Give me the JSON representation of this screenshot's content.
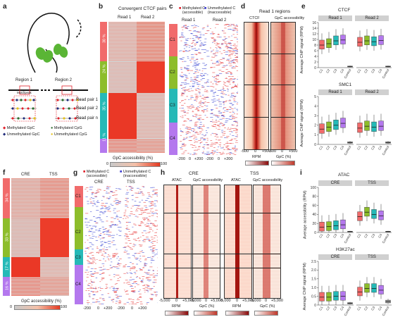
{
  "panels": [
    "a",
    "b",
    "c",
    "d",
    "e",
    "f",
    "g",
    "h",
    "i"
  ],
  "a": {
    "region1": "Region 1",
    "region2": "Region 2",
    "motif": "Motif/peak",
    "read_pairs": [
      "Read pair 1",
      "Read pair 2",
      "Read pair n"
    ],
    "legend": [
      "Methylated GpC",
      "Unmethylated GpC",
      "Methylated CpG",
      "Unmethylated CpG"
    ],
    "colors": {
      "meth_gpc": "#e0202a",
      "unmeth_gpc": "#1f2a7a",
      "meth_cpg": "#2b6b2b",
      "unmeth_cpg": "#e6c21a"
    }
  },
  "b": {
    "title": "Convergent CTCF pairs",
    "read1": "Read 1",
    "read2": "Read 2",
    "clusters": [
      "30 %",
      "24 %",
      "35 %",
      "11 %"
    ],
    "cbar_label": "GpC accessibility (%)",
    "cbar_min": "0",
    "cbar_max": "100"
  },
  "c": {
    "legend_meth": "Methylated C (accessible)",
    "legend_unmeth": "Unmethylated C (inaccessible)",
    "read1": "Read 1",
    "read2": "Read 2",
    "clusters": [
      "C1",
      "C2",
      "C3",
      "C4"
    ],
    "ticks": [
      "-200",
      "0",
      "+200",
      "-200",
      "0",
      "+200"
    ]
  },
  "d": {
    "title": "Read 1 regions",
    "col1": "CTCF",
    "col2": "GpC accessibility",
    "ticks": [
      "-500",
      "0",
      "+500",
      "-500",
      "0",
      "+500"
    ],
    "cbar1": "RPM",
    "cbar2": "GpC (%)"
  },
  "e": {
    "title1": "CTCF",
    "title2": "SMC1",
    "read1": "Read 1",
    "read2": "Read 2",
    "ylabel": "Average ChIP signal (RPM)",
    "yticks1": [
      "0",
      "2",
      "4",
      "6",
      "8",
      "10",
      "12",
      "14",
      "16"
    ],
    "yticks2": [
      "0",
      "1",
      "2",
      "3",
      "4",
      "5"
    ],
    "xcats": [
      "C1",
      "C2",
      "C3",
      "C4",
      "Control"
    ]
  },
  "f": {
    "col1": "CRE",
    "col2": "TSS",
    "clusters": [
      "34 %",
      "33 %",
      "17 %",
      "16 %"
    ],
    "cbar_label": "GpC accessibility (%)",
    "cbar_min": "0",
    "cbar_max": "100"
  },
  "g": {
    "legend_meth": "Methylated C (accessible)",
    "legend_unmeth": "Unmethylated C (inaccessible)",
    "col1": "CRE",
    "col2": "TSS",
    "clusters": [
      "C1",
      "C2",
      "C3",
      "C4"
    ],
    "ticks": [
      "-200",
      "0",
      "+200",
      "-200",
      "0",
      "+200"
    ]
  },
  "h": {
    "cre": "CRE",
    "tss": "TSS",
    "atac": "ATAC",
    "gpc": "GpC accessibility",
    "ticks": [
      "-5,000",
      "0",
      "+5,000"
    ],
    "cbar1": "RPM",
    "cbar2": "GpC (%)"
  },
  "i": {
    "title1": "ATAC",
    "title2": "H3K27ac",
    "cre": "CRE",
    "tss": "TSS",
    "ylabel1": "Average accessibility (RPM)",
    "ylabel2": "Average ChIP signal (RPM)",
    "yticks1": [
      "0",
      "20",
      "40",
      "60",
      "80",
      "100"
    ],
    "yticks2": [
      "0",
      "0.5",
      "1.0",
      "1.5",
      "2.0",
      "2.5"
    ],
    "xcats": [
      "C1",
      "C2",
      "C3",
      "C4",
      "Control"
    ]
  },
  "chart_data": [
    {
      "type": "box",
      "panel": "e",
      "title": "CTCF",
      "facets": [
        "Read 1",
        "Read 2"
      ],
      "ylabel": "Average ChIP signal (RPM)",
      "ylim": [
        0,
        16
      ],
      "categories": [
        "C1",
        "C2",
        "C3",
        "C4",
        "Control"
      ],
      "series": [
        {
          "name": "Read 1",
          "medians": [
            8,
            8.5,
            9.5,
            9.8,
            0.4
          ]
        },
        {
          "name": "Read 2",
          "medians": [
            9,
            9.5,
            9.2,
            9.6,
            0.4
          ]
        }
      ]
    },
    {
      "type": "box",
      "panel": "e",
      "title": "SMC1",
      "facets": [
        "Read 1",
        "Read 2"
      ],
      "ylabel": "Average ChIP signal (RPM)",
      "ylim": [
        0,
        5
      ],
      "categories": [
        "C1",
        "C2",
        "C3",
        "C4",
        "Control"
      ],
      "series": [
        {
          "name": "Read 1",
          "medians": [
            1.6,
            1.8,
            2.0,
            2.2,
            0.2
          ]
        },
        {
          "name": "Read 2",
          "medians": [
            1.7,
            1.9,
            1.8,
            1.9,
            0.2
          ]
        }
      ]
    },
    {
      "type": "box",
      "panel": "i",
      "title": "ATAC",
      "facets": [
        "CRE",
        "TSS"
      ],
      "ylabel": "Average accessibility (RPM)",
      "ylim": [
        0,
        100
      ],
      "categories": [
        "C1",
        "C2",
        "C3",
        "C4",
        "Control"
      ],
      "series": [
        {
          "name": "CRE",
          "medians": [
            12,
            13,
            15,
            17,
            2
          ]
        },
        {
          "name": "TSS",
          "medians": [
            35,
            45,
            40,
            37,
            2
          ]
        }
      ]
    },
    {
      "type": "box",
      "panel": "i",
      "title": "H3K27ac",
      "facets": [
        "CRE",
        "TSS"
      ],
      "ylabel": "Average ChIP signal (RPM)",
      "ylim": [
        0,
        2.5
      ],
      "categories": [
        "C1",
        "C2",
        "C3",
        "C4",
        "Control"
      ],
      "series": [
        {
          "name": "CRE",
          "medians": [
            0.45,
            0.45,
            0.5,
            0.5,
            0.1
          ]
        },
        {
          "name": "TSS",
          "medians": [
            0.75,
            0.95,
            0.95,
            0.85,
            0.2
          ]
        }
      ]
    }
  ]
}
